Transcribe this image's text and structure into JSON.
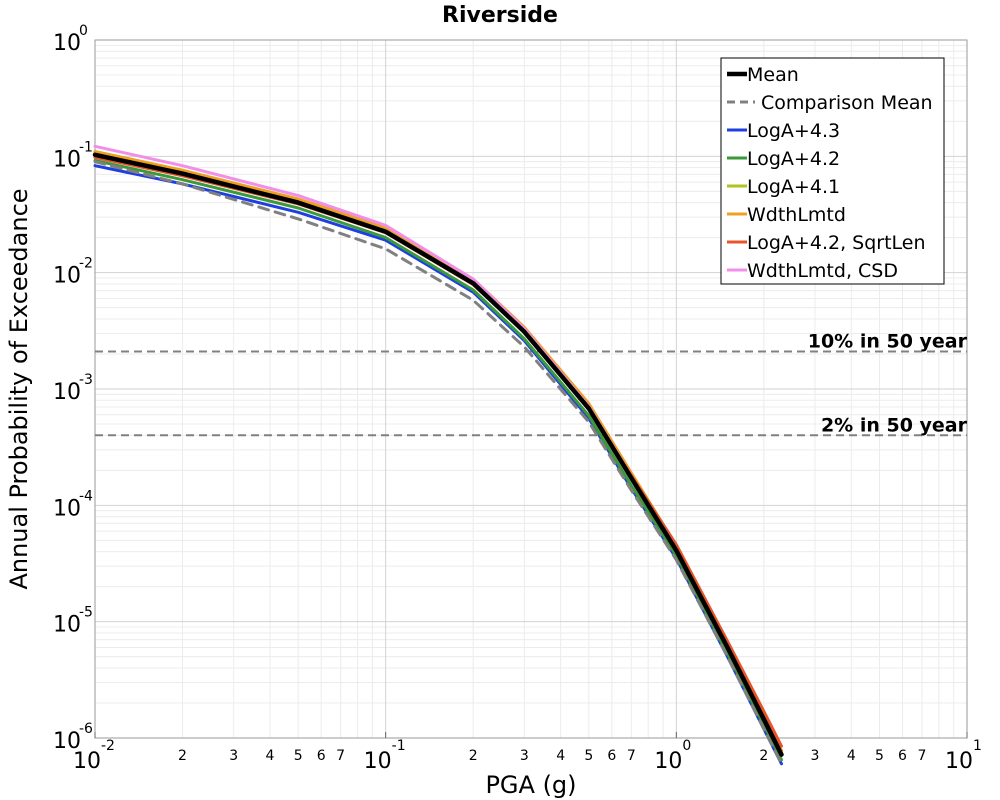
{
  "chart_data": {
    "type": "line",
    "title": "Riverside",
    "xlabel": "PGA (g)",
    "ylabel": "Annual Probability of Exceedance",
    "xscale": "log",
    "yscale": "log",
    "xlim": [
      0.01,
      10
    ],
    "ylim": [
      1e-06,
      1
    ],
    "grid": true,
    "legend_position": "top-right",
    "x_major_ticks": [
      {
        "base": "10",
        "exp": "-2"
      },
      {
        "base": "10",
        "exp": "-1"
      },
      {
        "base": "10",
        "exp": "0"
      },
      {
        "base": "10",
        "exp": "1"
      }
    ],
    "y_major_ticks": [
      {
        "base": "10",
        "exp": "0"
      },
      {
        "base": "10",
        "exp": "-1"
      },
      {
        "base": "10",
        "exp": "-2"
      },
      {
        "base": "10",
        "exp": "-3"
      },
      {
        "base": "10",
        "exp": "-4"
      },
      {
        "base": "10",
        "exp": "-5"
      },
      {
        "base": "10",
        "exp": "-6"
      }
    ],
    "x_minor_labels": [
      "2",
      "3",
      "4",
      "5",
      "6",
      "7"
    ],
    "series": [
      {
        "name": "LogA+4.3",
        "color": "#1f3fe0",
        "width": 3,
        "dash": "",
        "x": [
          0.01,
          0.02,
          0.05,
          0.1,
          0.2,
          0.3,
          0.5,
          0.7,
          1.0,
          1.5,
          2.0,
          2.3
        ],
        "y": [
          0.083,
          0.058,
          0.033,
          0.019,
          0.0068,
          0.0026,
          0.00056,
          0.00014,
          3.5e-05,
          5e-06,
          1.2e-06,
          6e-07
        ]
      },
      {
        "name": "LogA+4.2",
        "color": "#3a9a3a",
        "width": 3,
        "dash": "",
        "x": [
          0.01,
          0.02,
          0.05,
          0.1,
          0.2,
          0.3,
          0.5,
          0.7,
          1.0,
          1.5,
          2.0,
          2.3
        ],
        "y": [
          0.092,
          0.063,
          0.036,
          0.02,
          0.0071,
          0.0027,
          0.00059,
          0.000148,
          3.7e-05,
          5.3e-06,
          1.3e-06,
          6.5e-07
        ]
      },
      {
        "name": "LogA+4.1",
        "color": "#b2c21e",
        "width": 3,
        "dash": "",
        "x": [
          0.01,
          0.02,
          0.05,
          0.1,
          0.2,
          0.3,
          0.5,
          0.7,
          1.0,
          1.5,
          2.0,
          2.3
        ],
        "y": [
          0.108,
          0.075,
          0.042,
          0.024,
          0.0086,
          0.0033,
          0.00072,
          0.000182,
          4.3e-05,
          6.2e-06,
          1.5e-06,
          7.5e-07
        ]
      },
      {
        "name": "WdthLmtd",
        "color": "#f0a020",
        "width": 3,
        "dash": "",
        "x": [
          0.01,
          0.02,
          0.05,
          0.1,
          0.2,
          0.3,
          0.5,
          0.7,
          1.0,
          1.5,
          2.0,
          2.3
        ],
        "y": [
          0.11,
          0.076,
          0.043,
          0.0245,
          0.0088,
          0.0034,
          0.00075,
          0.00019,
          4.5e-05,
          6.5e-06,
          1.55e-06,
          7.8e-07
        ]
      },
      {
        "name": "LogA+4.2, SqrtLen",
        "color": "#e8552a",
        "width": 3,
        "dash": "",
        "x": [
          0.01,
          0.02,
          0.05,
          0.1,
          0.2,
          0.3,
          0.5,
          0.7,
          1.0,
          1.5,
          2.0,
          2.3
        ],
        "y": [
          0.098,
          0.068,
          0.039,
          0.022,
          0.0079,
          0.0031,
          0.00068,
          0.00018,
          4.6e-05,
          6.8e-06,
          1.7e-06,
          8.5e-07
        ]
      },
      {
        "name": "WdthLmtd, CSD",
        "color": "#f08ee8",
        "width": 3,
        "dash": "",
        "x": [
          0.01,
          0.02,
          0.05,
          0.1,
          0.2,
          0.3,
          0.5,
          0.7,
          1.0,
          1.5,
          2.0,
          2.3
        ],
        "y": [
          0.122,
          0.083,
          0.046,
          0.0255,
          0.0088,
          0.0033,
          0.00071,
          0.000178,
          4.2e-05,
          6e-06,
          1.45e-06,
          7.2e-07
        ]
      },
      {
        "name": "Comparison Mean",
        "color": "#808080",
        "width": 3,
        "dash": "10,7",
        "x": [
          0.01,
          0.02,
          0.05,
          0.1,
          0.2,
          0.3,
          0.5,
          0.7,
          1.0,
          1.5,
          2.0,
          2.3
        ],
        "y": [
          0.09,
          0.058,
          0.029,
          0.016,
          0.0058,
          0.0023,
          0.00052,
          0.000135,
          3.4e-05,
          5e-06,
          1.2e-06,
          6e-07
        ]
      },
      {
        "name": "Mean",
        "color": "#000000",
        "width": 4.5,
        "dash": "",
        "x": [
          0.01,
          0.02,
          0.05,
          0.1,
          0.2,
          0.3,
          0.5,
          0.7,
          1.0,
          1.5,
          2.0,
          2.3
        ],
        "y": [
          0.103,
          0.071,
          0.04,
          0.0225,
          0.0081,
          0.0031,
          0.00068,
          0.000172,
          4.1e-05,
          6e-06,
          1.45e-06,
          7.2e-07
        ]
      }
    ],
    "legend_order": [
      "Mean",
      "Comparison Mean",
      "LogA+4.3",
      "LogA+4.2",
      "LogA+4.1",
      "WdthLmtd",
      "LogA+4.2, SqrtLen",
      "WdthLmtd, CSD"
    ],
    "reference_lines": [
      {
        "label": "10% in 50 year",
        "y": 0.0021,
        "color": "#808080",
        "dash": "8,5"
      },
      {
        "label": "2% in 50 year",
        "y": 0.0004,
        "color": "#808080",
        "dash": "8,5"
      }
    ]
  }
}
